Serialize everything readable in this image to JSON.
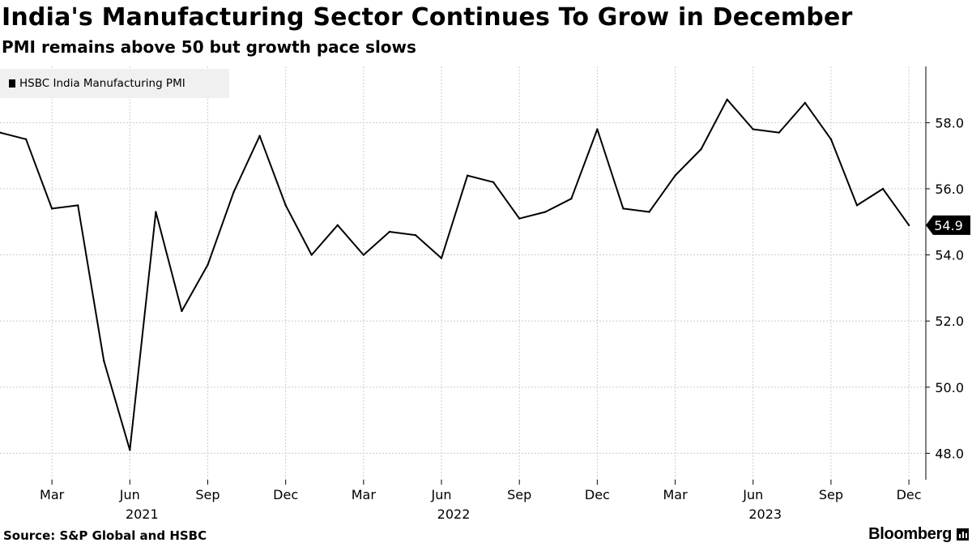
{
  "header": {
    "title": "India's Manufacturing Sector Continues To Grow in December",
    "subtitle": "PMI remains above 50 but growth pace slows"
  },
  "legend": {
    "label": "HSBC India Manufacturing PMI"
  },
  "footer": {
    "source": "Source: S&P Global and HSBC",
    "brand": "Bloomberg"
  },
  "colors": {
    "line": "#000000",
    "grid": "#cccccc",
    "legend_bg": "#f0f0f0"
  },
  "chart_data": {
    "type": "line",
    "title": "India's Manufacturing Sector Continues To Grow in December",
    "subtitle": "PMI remains above 50 but growth pace slows",
    "series": [
      {
        "name": "HSBC India Manufacturing PMI",
        "x": [
          "2021-01",
          "2021-02",
          "2021-03",
          "2021-04",
          "2021-05",
          "2021-06",
          "2021-07",
          "2021-08",
          "2021-09",
          "2021-10",
          "2021-11",
          "2021-12",
          "2022-01",
          "2022-02",
          "2022-03",
          "2022-04",
          "2022-05",
          "2022-06",
          "2022-07",
          "2022-08",
          "2022-09",
          "2022-10",
          "2022-11",
          "2022-12",
          "2023-01",
          "2023-02",
          "2023-03",
          "2023-04",
          "2023-05",
          "2023-06",
          "2023-07",
          "2023-08",
          "2023-09",
          "2023-10",
          "2023-11",
          "2023-12"
        ],
        "values": [
          57.7,
          57.5,
          55.4,
          55.5,
          50.8,
          48.1,
          55.3,
          52.3,
          53.7,
          55.9,
          57.6,
          55.5,
          54.0,
          54.9,
          54.0,
          54.7,
          54.6,
          53.9,
          56.4,
          56.2,
          55.1,
          55.3,
          55.7,
          57.8,
          55.4,
          55.3,
          56.4,
          57.2,
          58.7,
          57.8,
          57.7,
          58.6,
          57.5,
          55.5,
          56.0,
          54.9
        ]
      }
    ],
    "last_value_label": "54.9",
    "y_axis": {
      "position": "right",
      "min": 47.2,
      "max": 59.7,
      "ticks": [
        48,
        50,
        52,
        54,
        56,
        58
      ],
      "tick_labels": [
        "48.0",
        "50.0",
        "52.0",
        "54.0",
        "56.0",
        "58.0"
      ]
    },
    "x_axis": {
      "ticks": [
        {
          "date": "2021-03",
          "label": "Mar"
        },
        {
          "date": "2021-06",
          "label": "Jun"
        },
        {
          "date": "2021-09",
          "label": "Sep"
        },
        {
          "date": "2021-12",
          "label": "Dec"
        },
        {
          "date": "2022-03",
          "label": "Mar"
        },
        {
          "date": "2022-06",
          "label": "Jun"
        },
        {
          "date": "2022-09",
          "label": "Sep"
        },
        {
          "date": "2022-12",
          "label": "Dec"
        },
        {
          "date": "2023-03",
          "label": "Mar"
        },
        {
          "date": "2023-06",
          "label": "Jun"
        },
        {
          "date": "2023-09",
          "label": "Sep"
        },
        {
          "date": "2023-12",
          "label": "Dec"
        }
      ],
      "years": [
        {
          "label": "2021",
          "at": "2021-06"
        },
        {
          "label": "2022",
          "at": "2022-06"
        },
        {
          "label": "2023",
          "at": "2023-06"
        }
      ]
    },
    "grid": true,
    "legend_position": "top-left"
  }
}
